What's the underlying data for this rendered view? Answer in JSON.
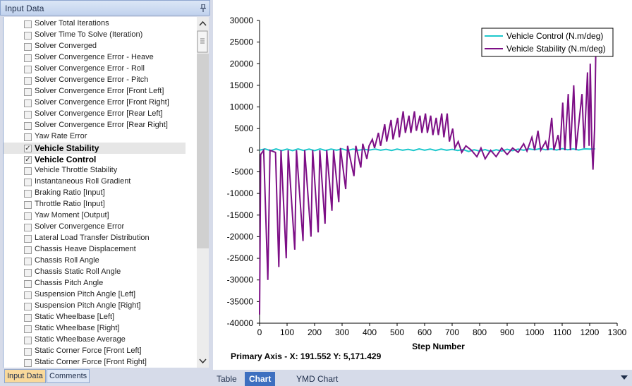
{
  "panel": {
    "title": "Input Data",
    "items": [
      {
        "label": "Solver Total Iterations",
        "checked": false
      },
      {
        "label": "Solver Time To Solve (Iteration)",
        "checked": false
      },
      {
        "label": "Solver Converged",
        "checked": false
      },
      {
        "label": "Solver Convergence Error - Heave",
        "checked": false
      },
      {
        "label": "Solver Convergence Error - Roll",
        "checked": false
      },
      {
        "label": "Solver Convergence Error - Pitch",
        "checked": false
      },
      {
        "label": "Solver Convergence Error [Front Left]",
        "checked": false
      },
      {
        "label": "Solver Convergence Error [Front Right]",
        "checked": false
      },
      {
        "label": "Solver Convergence Error [Rear Left]",
        "checked": false
      },
      {
        "label": "Solver Convergence Error [Rear Right]",
        "checked": false
      },
      {
        "label": "Yaw Rate Error",
        "checked": false
      },
      {
        "label": "Vehicle Stability",
        "checked": true,
        "selected": true
      },
      {
        "label": "Vehicle Control",
        "checked": true
      },
      {
        "label": "Vehicle Throttle Stability",
        "checked": false
      },
      {
        "label": "Instantaneous Roll Gradient",
        "checked": false
      },
      {
        "label": "Braking Ratio [Input]",
        "checked": false
      },
      {
        "label": "Throttle Ratio [Input]",
        "checked": false
      },
      {
        "label": "Yaw Moment [Output]",
        "checked": false
      },
      {
        "label": "Solver Convergence Error",
        "checked": false
      },
      {
        "label": "Lateral Load Transfer Distribution",
        "checked": false
      },
      {
        "label": "Chassis Heave Displacement",
        "checked": false
      },
      {
        "label": "Chassis Roll Angle",
        "checked": false
      },
      {
        "label": "Chassis Static Roll Angle",
        "checked": false
      },
      {
        "label": "Chassis Pitch Angle",
        "checked": false
      },
      {
        "label": "Suspension Pitch Angle [Left]",
        "checked": false
      },
      {
        "label": "Suspension Pitch Angle [Right]",
        "checked": false
      },
      {
        "label": "Static Wheelbase [Left]",
        "checked": false
      },
      {
        "label": "Static Wheelbase [Right]",
        "checked": false
      },
      {
        "label": "Static Wheelbase Average",
        "checked": false
      },
      {
        "label": "Static Corner Force [Front Left]",
        "checked": false
      },
      {
        "label": "Static Corner Force [Front Right]",
        "checked": false
      }
    ],
    "tabs": [
      "Input Data",
      "Comments"
    ]
  },
  "status": "Primary Axis - X: 191.552 Y: 5,171.429",
  "bottom_tabs": [
    "Table",
    "Chart",
    "YMD Chart"
  ],
  "chart_data": {
    "type": "line",
    "xlabel": "Step Number",
    "xlim": [
      0,
      1300
    ],
    "xticks": [
      0,
      100,
      200,
      300,
      400,
      500,
      600,
      700,
      800,
      900,
      1000,
      1100,
      1200,
      1300
    ],
    "ylim": [
      -40000,
      30000
    ],
    "yticks": [
      -40000,
      -35000,
      -30000,
      -25000,
      -20000,
      -15000,
      -10000,
      -5000,
      0,
      5000,
      10000,
      15000,
      20000,
      25000,
      30000
    ],
    "grid": false,
    "legend": "top-right",
    "series": [
      {
        "name": "Vehicle Control (N.m/deg)",
        "color": "#1ec8cc",
        "x": [
          0,
          20,
          40,
          60,
          80,
          100,
          120,
          140,
          160,
          180,
          200,
          220,
          240,
          260,
          280,
          300,
          320,
          340,
          360,
          380,
          400,
          420,
          440,
          460,
          480,
          500,
          520,
          540,
          560,
          580,
          600,
          620,
          640,
          660,
          680,
          700,
          720,
          740,
          760,
          780,
          800,
          820,
          840,
          860,
          880,
          900,
          920,
          940,
          960,
          980,
          1000,
          1020,
          1040,
          1060,
          1080,
          1100,
          1120,
          1140,
          1160,
          1180,
          1200,
          1220
        ],
        "values": [
          0,
          300,
          -100,
          300,
          -100,
          250,
          -100,
          300,
          -50,
          250,
          -100,
          300,
          -50,
          250,
          0,
          300,
          -50,
          250,
          0,
          200,
          50,
          250,
          0,
          200,
          -50,
          250,
          0,
          200,
          -50,
          300,
          0,
          250,
          -50,
          250,
          0,
          200,
          -50,
          150,
          -300,
          100,
          -200,
          150,
          -300,
          100,
          -200,
          200,
          -100,
          250,
          0,
          300,
          100,
          350,
          100,
          300,
          50,
          350,
          100,
          300,
          50,
          300,
          250,
          300
        ]
      },
      {
        "name": "Vehicle Stability (N.m/deg)",
        "color": "#7d0f86",
        "x": [
          0,
          4,
          15,
          30,
          38,
          58,
          70,
          78,
          97,
          104,
          128,
          134,
          158,
          164,
          187,
          193,
          213,
          219,
          238,
          244,
          263,
          269,
          288,
          294,
          313,
          320,
          343,
          350,
          368,
          375,
          390,
          398,
          410,
          418,
          432,
          440,
          455,
          462,
          478,
          485,
          502,
          508,
          522,
          530,
          543,
          550,
          563,
          570,
          583,
          590,
          603,
          610,
          622,
          630,
          642,
          650,
          662,
          670,
          682,
          690,
          702,
          710,
          722,
          735,
          750,
          770,
          790,
          805,
          820,
          840,
          860,
          880,
          900,
          920,
          940,
          960,
          972,
          990,
          1000,
          1012,
          1022,
          1040,
          1048,
          1062,
          1070,
          1085,
          1092,
          1102,
          1110,
          1122,
          1130,
          1142,
          1150,
          1172,
          1180,
          1192,
          1198,
          1202,
          1208,
          1212,
          1218,
          1222
        ],
        "values": [
          -38000,
          -1000,
          0,
          -30000,
          0,
          -500,
          -27000,
          0,
          -25000,
          0,
          -23000,
          0,
          -21000,
          0,
          -20000,
          0,
          -19000,
          0,
          -17000,
          0,
          -14000,
          0,
          -12000,
          500,
          -9000,
          1000,
          -6000,
          1000,
          -4000,
          1500,
          -2000,
          1000,
          2500,
          500,
          4000,
          1000,
          6000,
          2000,
          7000,
          2500,
          7500,
          3000,
          9000,
          4000,
          8000,
          4000,
          9000,
          4500,
          8000,
          4000,
          8500,
          4000,
          8000,
          3500,
          7500,
          3500,
          8500,
          3000,
          8500,
          2000,
          5000,
          500,
          2000,
          -500,
          1000,
          0,
          -1500,
          500,
          -2000,
          0,
          -1500,
          500,
          -1000,
          500,
          -500,
          1500,
          -200,
          3000,
          0,
          4500,
          0,
          2000,
          0,
          7500,
          0,
          3500,
          0,
          11000,
          0,
          13000,
          0,
          15000,
          0,
          13000,
          500,
          18000,
          1000,
          20000,
          1000,
          -4500,
          5000,
          22000
        ]
      }
    ]
  }
}
